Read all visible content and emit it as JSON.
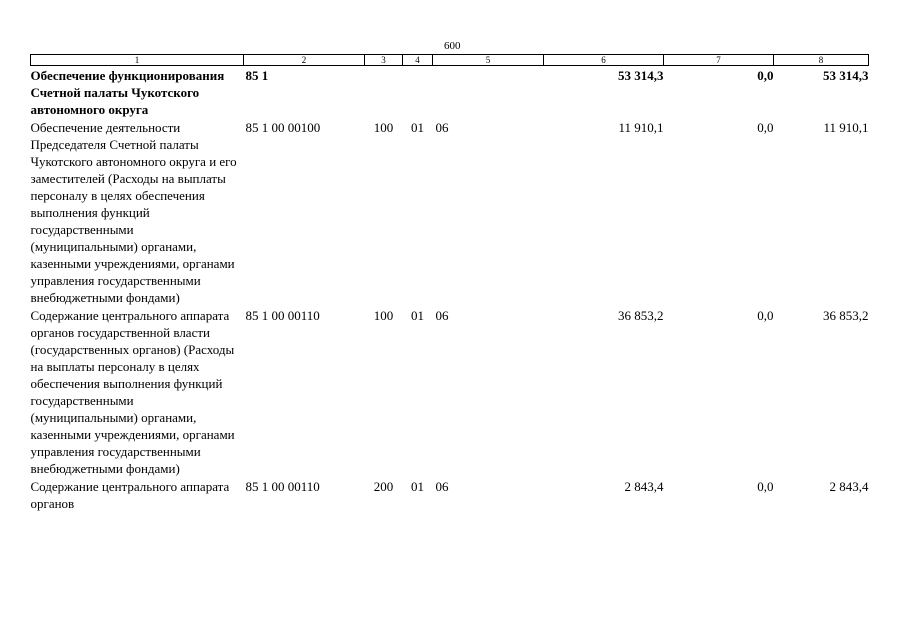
{
  "page_number": "600",
  "table": {
    "header": [
      "1",
      "2",
      "3",
      "4",
      "5",
      "6",
      "7",
      "8"
    ],
    "rows": [
      {
        "desc": "Обеспечение функционирования Счетной палаты Чукотского автономного округа",
        "code": "85 1",
        "vr": "",
        "section": "",
        "subsection": "",
        "col6": "53 314,3",
        "col7": "0,0",
        "col8": "53 314,3",
        "bold": true
      },
      {
        "desc": "Обеспечение деятельности Председателя Счетной палаты Чукотского автономного округа и его заместителей (Расходы на выплаты персоналу в целях обеспечения выполнения функций государственными (муниципальными) органами, казенными учреждениями, органами управления государственными внебюджетными фондами)",
        "code": "85 1 00 00100",
        "vr": "100",
        "section": "01",
        "subsection": "06",
        "col6": "11 910,1",
        "col7": "0,0",
        "col8": "11 910,1",
        "bold": false
      },
      {
        "desc": "Содержание центрального аппарата органов государственной власти (государственных органов) (Расходы на выплаты персоналу в целях обеспечения выполнения функций государственными (муниципальными) органами, казенными учреждениями, органами управления государственными внебюджетными фондами)",
        "code": "85 1 00 00110",
        "vr": "100",
        "section": "01",
        "subsection": "06",
        "col6": "36 853,2",
        "col7": "0,0",
        "col8": "36 853,2",
        "bold": false
      },
      {
        "desc": "Содержание центрального аппарата органов",
        "code": "85 1 00 00110",
        "vr": "200",
        "section": "01",
        "subsection": "06",
        "col6": "2 843,4",
        "col7": "0,0",
        "col8": "2 843,4",
        "bold": false
      }
    ]
  }
}
